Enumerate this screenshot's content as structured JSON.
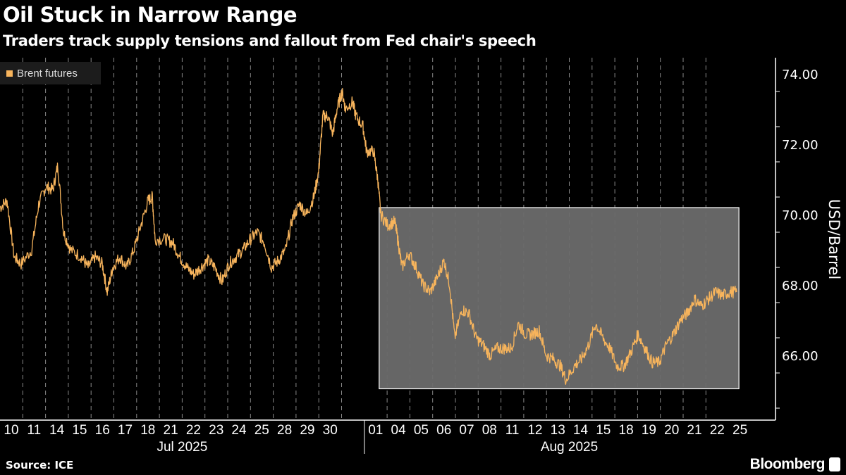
{
  "header": {
    "title": "Oil Stuck in Narrow Range",
    "subtitle": "Traders track supply tensions and fallout from Fed chair's speech"
  },
  "footer": {
    "source": "Source: ICE",
    "brand": "Bloomberg"
  },
  "colors": {
    "line": "#f7b45c",
    "highlight": "#6b6b6b",
    "background": "#000000"
  },
  "chart_data": {
    "type": "line",
    "title": "Oil Stuck in Narrow Range",
    "subtitle": "Traders track supply tensions and fallout from Fed chair's speech",
    "ylabel": "USD/Barrel",
    "ylim": [
      64.2,
      74.6
    ],
    "yticks": [
      74,
      72,
      70,
      68,
      66
    ],
    "ytick_labels": [
      "74.00",
      "72.00",
      "70.00",
      "68.00",
      "66.00"
    ],
    "x_unit": "trading days since Jul 10 open",
    "xlim": [
      0,
      34
    ],
    "day_labels": [
      "10",
      "11",
      "14",
      "15",
      "16",
      "17",
      "18",
      "21",
      "22",
      "23",
      "24",
      "25",
      "28",
      "29",
      "30",
      "01",
      "04",
      "05",
      "06",
      "07",
      "08",
      "11",
      "12",
      "13",
      "14",
      "15",
      "18",
      "19",
      "20",
      "21",
      "22",
      "25"
    ],
    "months": [
      {
        "label": "Jul 2025",
        "start": 0,
        "end": 15
      },
      {
        "label": "Aug 2025",
        "start": 16,
        "end": 33
      }
    ],
    "grid": "vertical dashed",
    "legend": {
      "position": "top-left",
      "entries": [
        "Brent futures"
      ]
    },
    "highlight": {
      "x": [
        16.65,
        32.45
      ],
      "y": [
        65.05,
        70.2
      ]
    },
    "series": [
      {
        "name": "Brent futures",
        "x": [
          0,
          0.31,
          0.62,
          0.93,
          1.39,
          1.7,
          2.01,
          2.32,
          2.54,
          2.79,
          3.1,
          3.56,
          3.87,
          4.18,
          4.49,
          4.71,
          4.95,
          5.26,
          5.57,
          5.88,
          6.19,
          6.5,
          6.69,
          6.81,
          7.28,
          7.59,
          7.89,
          8.2,
          8.51,
          8.82,
          9.13,
          9.44,
          9.75,
          10.06,
          10.37,
          10.68,
          10.99,
          11.3,
          11.61,
          11.92,
          12.23,
          12.54,
          12.85,
          13.16,
          13.47,
          13.78,
          13.99,
          14.18,
          14.4,
          14.61,
          14.8,
          15.02,
          15.17,
          15.48,
          15.63,
          15.94,
          16.1,
          16.41,
          16.59,
          16.72,
          17.03,
          17.34,
          17.49,
          17.65,
          17.96,
          18.27,
          18.58,
          18.89,
          19.2,
          19.5,
          19.75,
          19.97,
          20.28,
          20.59,
          20.9,
          21.21,
          21.52,
          21.83,
          22.14,
          22.45,
          22.76,
          23.07,
          23.37,
          23.68,
          23.99,
          24.3,
          24.61,
          24.86,
          25.23,
          25.54,
          25.85,
          26.16,
          26.47,
          26.78,
          27.09,
          27.4,
          27.71,
          28.02,
          28.33,
          28.64,
          28.95,
          29.26,
          29.57,
          29.88,
          30.19,
          30.5,
          30.8,
          31.11,
          31.42,
          31.73,
          32.04,
          32.35
        ],
        "values": [
          70.2,
          70.4,
          68.8,
          68.6,
          69.0,
          70.3,
          70.8,
          70.7,
          71.4,
          69.5,
          69.0,
          68.8,
          68.5,
          68.8,
          68.6,
          67.8,
          68.5,
          68.8,
          68.5,
          69.0,
          69.7,
          70.4,
          70.5,
          69.3,
          69.3,
          69.2,
          68.8,
          68.5,
          68.3,
          68.5,
          68.7,
          68.5,
          68.1,
          68.6,
          68.8,
          69.0,
          69.3,
          69.5,
          69.2,
          68.5,
          68.7,
          69.0,
          69.9,
          70.3,
          70.0,
          70.5,
          71.2,
          72.8,
          72.8,
          72.3,
          73.0,
          73.5,
          73.0,
          73.2,
          72.8,
          72.5,
          71.8,
          71.8,
          71.0,
          70.0,
          69.7,
          69.8,
          69.2,
          68.5,
          68.9,
          68.5,
          68.0,
          67.8,
          68.2,
          68.7,
          68.0,
          66.5,
          67.3,
          67.2,
          66.5,
          66.3,
          66.0,
          66.2,
          66.2,
          66.2,
          66.9,
          66.6,
          66.6,
          66.7,
          66.0,
          65.9,
          65.7,
          65.3,
          65.7,
          65.9,
          66.3,
          66.9,
          66.5,
          66.2,
          65.7,
          65.7,
          66.1,
          66.6,
          66.2,
          65.8,
          65.8,
          66.3,
          66.6,
          67.0,
          67.2,
          67.6,
          67.4,
          67.6,
          67.8,
          67.7,
          67.8,
          67.8
        ]
      }
    ]
  }
}
